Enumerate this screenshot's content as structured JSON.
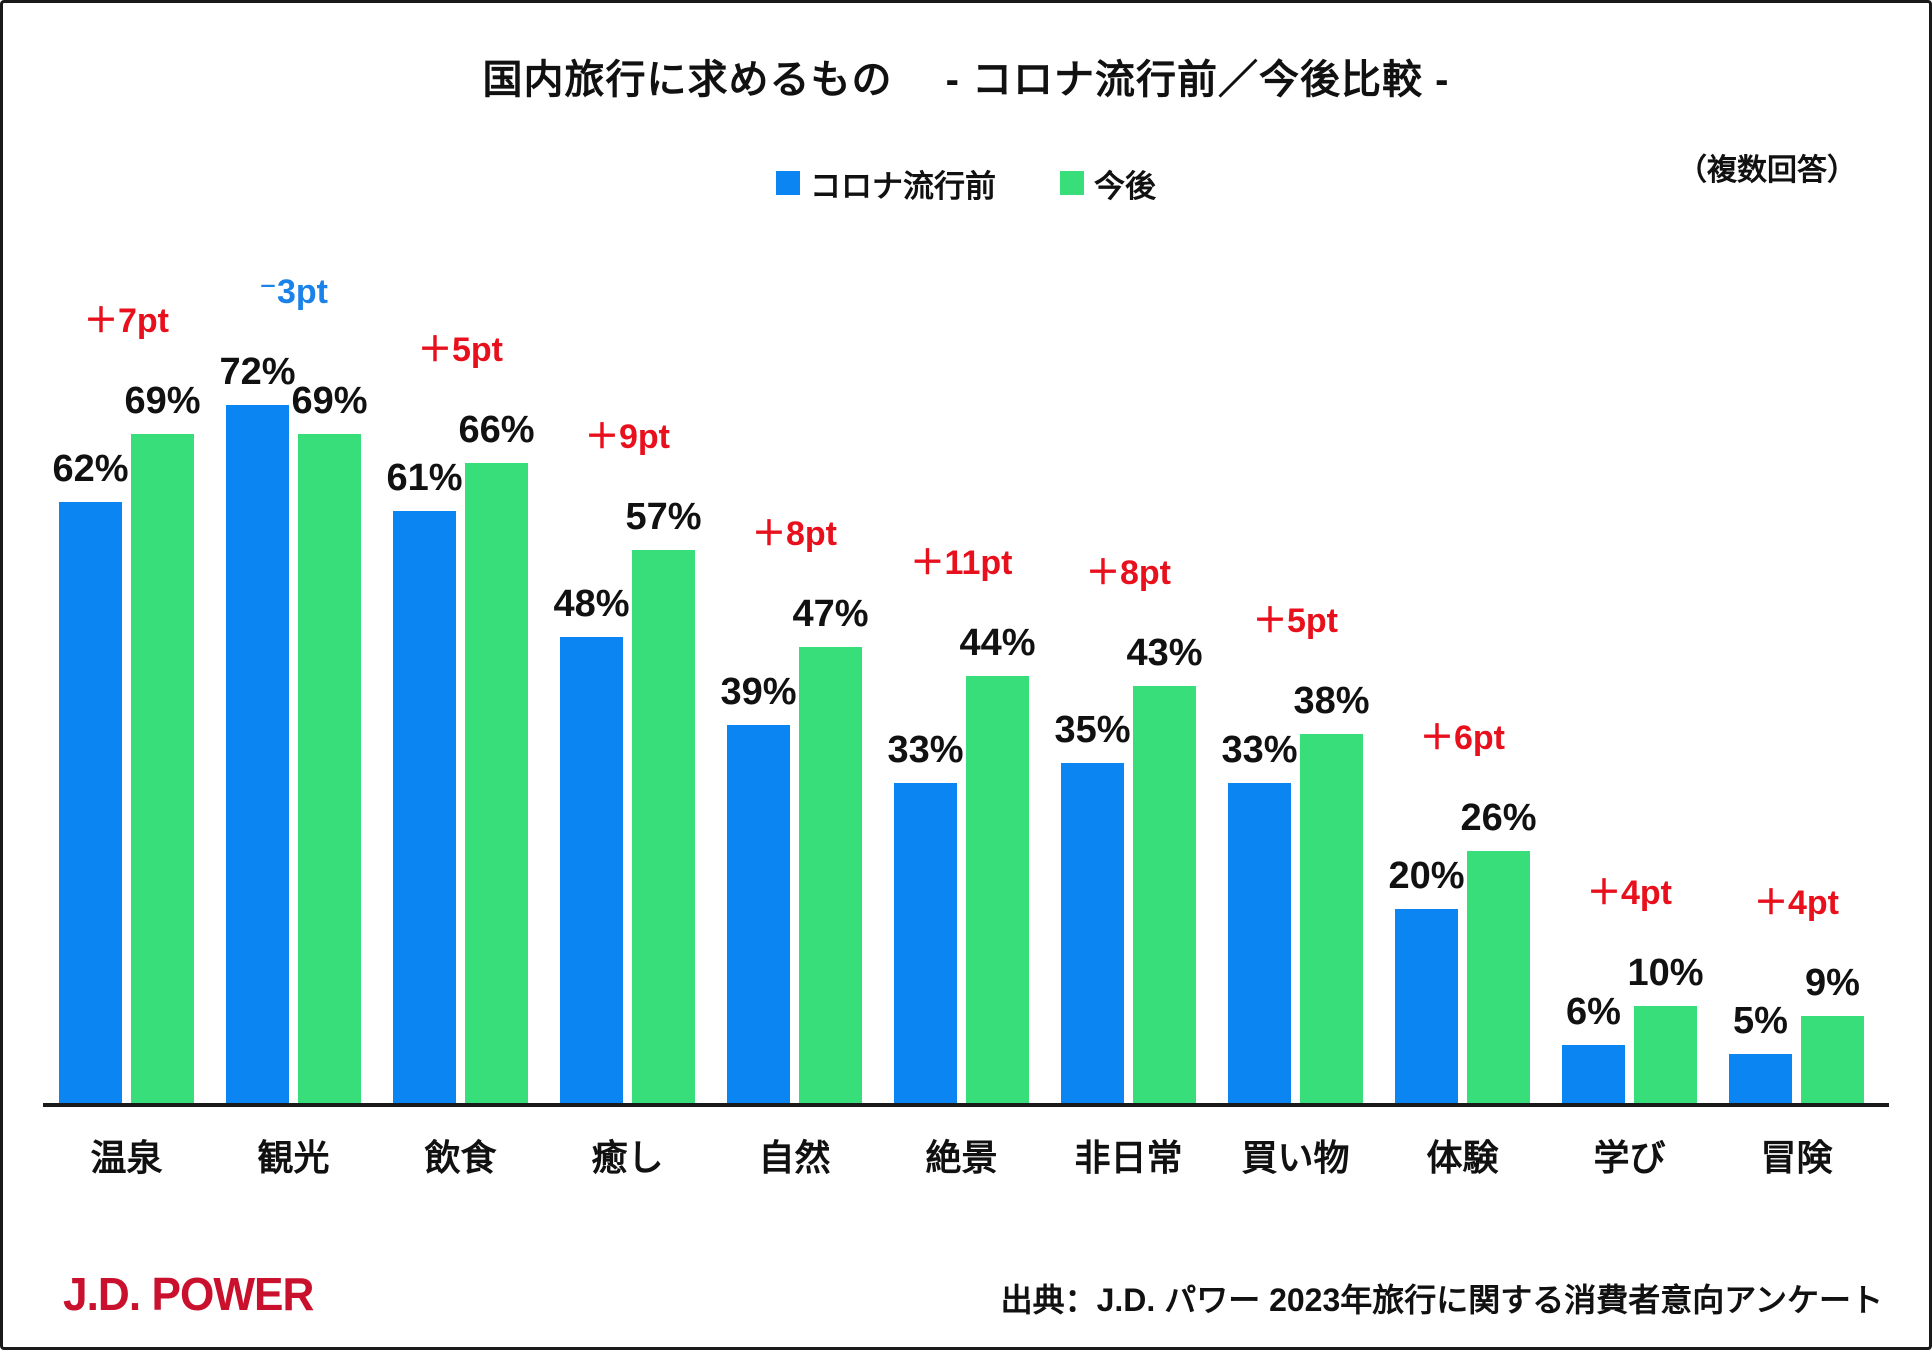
{
  "title": "国内旅行に求めるもの　 - コロナ流行前／今後比較 -",
  "note": "（複数回答）",
  "legend": {
    "pre_label": "コロナ流行前",
    "post_label": "今後"
  },
  "colors": {
    "pre_blue": "#0b85f1",
    "post_green": "#38de79",
    "diff_positive_red": "#e8101c",
    "diff_negative_blue": "#1a82e8",
    "axis_black": "#1a1a1a",
    "logo_red": "#c9102d"
  },
  "chart_data": {
    "type": "bar",
    "title": "国内旅行に求めるもの - コロナ流行前／今後比較 -",
    "categories": [
      "温泉",
      "観光",
      "飲食",
      "癒し",
      "自然",
      "絶景",
      "非日常",
      "買い物",
      "体験",
      "学び",
      "冒険"
    ],
    "series": [
      {
        "name": "コロナ流行前",
        "color": "#0b85f1",
        "values": [
          62,
          72,
          61,
          48,
          39,
          33,
          35,
          33,
          20,
          6,
          5
        ]
      },
      {
        "name": "今後",
        "color": "#38de79",
        "values": [
          69,
          69,
          66,
          57,
          47,
          44,
          43,
          38,
          26,
          10,
          9
        ]
      }
    ],
    "value_labels": {
      "pre": [
        "62%",
        "72%",
        "61%",
        "48%",
        "39%",
        "33%",
        "35%",
        "33%",
        "20%",
        "6%",
        "5%"
      ],
      "post": [
        "69%",
        "69%",
        "66%",
        "57%",
        "47%",
        "44%",
        "43%",
        "38%",
        "26%",
        "10%",
        "9%"
      ]
    },
    "diff_labels": [
      {
        "text": "＋7pt",
        "value": 7,
        "color": "#e8101c"
      },
      {
        "text": "⁻3pt",
        "value": -3,
        "color": "#1a82e8"
      },
      {
        "text": "＋5pt",
        "value": 5,
        "color": "#e8101c"
      },
      {
        "text": "＋9pt",
        "value": 9,
        "color": "#e8101c"
      },
      {
        "text": "＋8pt",
        "value": 8,
        "color": "#e8101c"
      },
      {
        "text": "＋11pt",
        "value": 11,
        "color": "#e8101c"
      },
      {
        "text": "＋8pt",
        "value": 8,
        "color": "#e8101c"
      },
      {
        "text": "＋5pt",
        "value": 5,
        "color": "#e8101c"
      },
      {
        "text": "＋6pt",
        "value": 6,
        "color": "#e8101c"
      },
      {
        "text": "＋4pt",
        "value": 4,
        "color": "#e8101c"
      },
      {
        "text": "＋4pt",
        "value": 4,
        "color": "#e8101c"
      }
    ],
    "unit": "%",
    "ylim": [
      0,
      100
    ],
    "grid": false,
    "legend_position": "top-center"
  },
  "footer": {
    "logo": "J.D. POWER",
    "source": "出典：J.D. パワー 2023年旅行に関する消費者意向アンケート"
  }
}
